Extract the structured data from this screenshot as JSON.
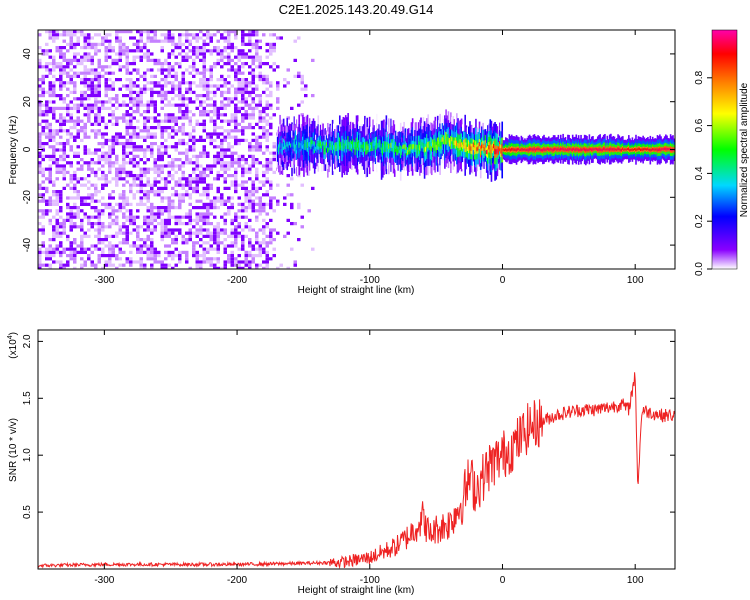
{
  "page": {
    "title": "C2E1.2025.143.20.49.G14"
  },
  "chart_data": [
    {
      "type": "heatmap",
      "title": "C2E1.2025.143.20.49.G14",
      "xlabel": "Height of straight line (km)",
      "ylabel": "Frequency (Hz)",
      "xlim": [
        -350,
        130
      ],
      "ylim": [
        -50,
        50
      ],
      "x_ticks": [
        -300,
        -200,
        -100,
        0,
        100
      ],
      "y_ticks": [
        -40,
        -20,
        0,
        20,
        40
      ],
      "grid": false,
      "colorbar": {
        "label": "Normalized spectral amplitude",
        "range": [
          0.0,
          1.0
        ],
        "ticks": [
          "0.0",
          "0.2",
          "0.4",
          "0.6",
          "0.8"
        ],
        "colors": [
          "#ffffff",
          "#8a00ff",
          "#0000ff",
          "#00d8ff",
          "#00ff00",
          "#ffff00",
          "#ff8000",
          "#ff0000",
          "#ff00aa"
        ]
      },
      "regions": [
        {
          "x_range": [
            -350,
            -175
          ],
          "description_level": 0.1
        },
        {
          "x_range": [
            -175,
            130
          ],
          "signal_center_hz": 0
        }
      ],
      "signal_track": {
        "x": [
          -170,
          -150,
          -130,
          -110,
          -90,
          -70,
          -50,
          -40,
          -30,
          -20,
          -10,
          0,
          20,
          40,
          60,
          80,
          100,
          120,
          130
        ],
        "center_hz": [
          1,
          2,
          1,
          2,
          1,
          0,
          2,
          4,
          2,
          1,
          0,
          0,
          0,
          0,
          0,
          0,
          0,
          0,
          0
        ],
        "amplitude": [
          0.3,
          0.4,
          0.45,
          0.45,
          0.45,
          0.5,
          0.55,
          0.6,
          0.7,
          0.8,
          0.85,
          0.9,
          0.95,
          0.95,
          0.95,
          0.95,
          0.9,
          0.95,
          0.95
        ]
      }
    },
    {
      "type": "line",
      "xlabel": "Height of straight line (km)",
      "ylabel": "SNR (10 * v/v)",
      "y_multiplier": "(x10",
      "y_multiplier_exp": "4",
      "y_multiplier_close": ")",
      "xlim": [
        -350,
        130
      ],
      "ylim": [
        0,
        2.1
      ],
      "x_ticks": [
        -300,
        -200,
        -100,
        0,
        100
      ],
      "y_ticks": [
        0.5,
        1.0,
        1.5,
        2.0
      ],
      "y_tick_labels": [
        "0.5",
        "1.0",
        "1.5",
        "2.0"
      ],
      "grid": false,
      "series": [
        {
          "color": "#ee2222",
          "x": [
            -350,
            -300,
            -250,
            -200,
            -150,
            -120,
            -100,
            -90,
            -80,
            -70,
            -60,
            -55,
            -50,
            -40,
            -30,
            -25,
            -20,
            -10,
            0,
            10,
            20,
            30,
            40,
            50,
            60,
            70,
            80,
            90,
            95,
            100,
            102,
            105,
            110,
            120,
            130
          ],
          "y": [
            0.03,
            0.04,
            0.04,
            0.04,
            0.05,
            0.06,
            0.1,
            0.15,
            0.2,
            0.3,
            0.45,
            0.3,
            0.35,
            0.4,
            0.6,
            0.8,
            0.7,
            0.9,
            1.0,
            1.1,
            1.25,
            1.3,
            1.35,
            1.38,
            1.4,
            1.4,
            1.42,
            1.45,
            1.4,
            1.7,
            0.7,
            1.4,
            1.38,
            1.35,
            1.35
          ]
        }
      ]
    }
  ]
}
